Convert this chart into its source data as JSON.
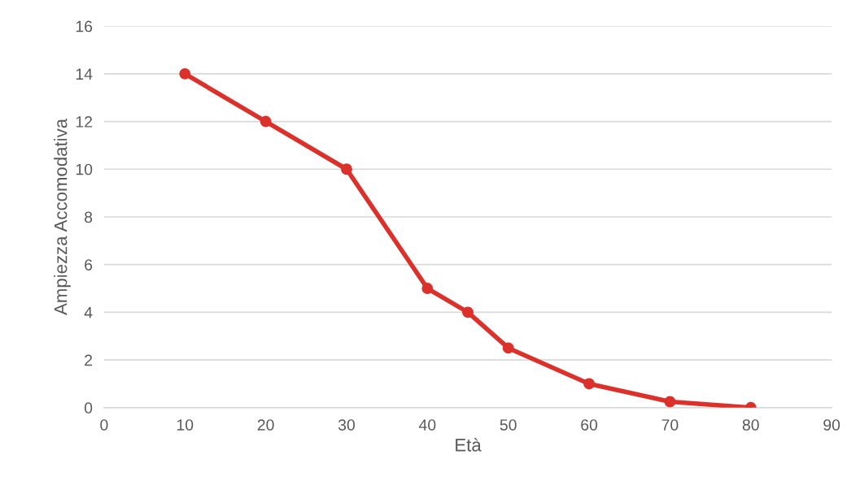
{
  "chart_data": {
    "type": "line",
    "xlabel": "Età",
    "ylabel": "Ampiezza Accomodativa",
    "x": [
      10,
      20,
      30,
      40,
      45,
      50,
      60,
      70,
      80
    ],
    "series": [
      {
        "color": "#dc312b",
        "values": [
          14,
          12,
          10,
          5,
          4,
          2.5,
          1,
          0.25,
          0
        ]
      }
    ],
    "xlim": [
      0,
      90
    ],
    "xticks": [
      0,
      10,
      20,
      30,
      40,
      50,
      60,
      70,
      80,
      90
    ],
    "ylim": [
      0,
      16
    ],
    "yticks": [
      0,
      2,
      4,
      6,
      8,
      10,
      12,
      14,
      16
    ],
    "grid": "y",
    "marker": "circle",
    "line_style": "solid",
    "legend": false
  }
}
